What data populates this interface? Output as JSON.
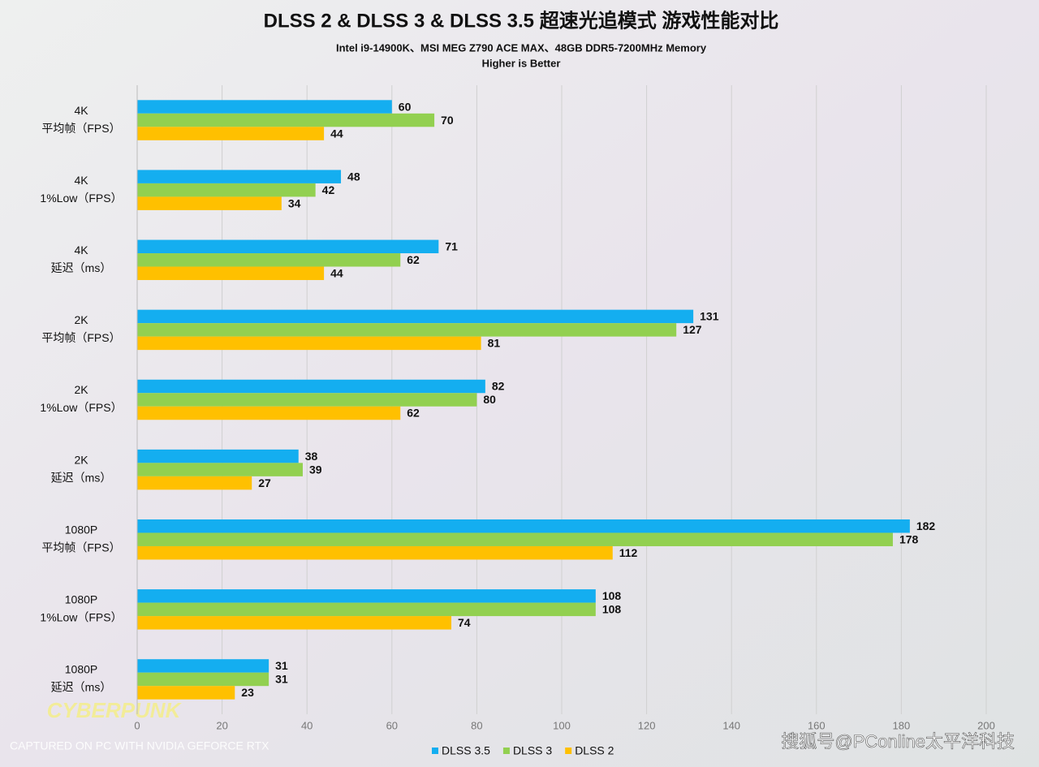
{
  "chart_data": {
    "type": "hbar",
    "title": "DLSS 2 & DLSS 3 & DLSS 3.5 超速光追模式 游戏性能对比",
    "subtitle": [
      "Intel i9-14900K、MSI MEG Z790 ACE MAX、48GB DDR5-7200MHz Memory",
      "Higher is Better"
    ],
    "categories": [
      [
        "4K",
        "平均帧（FPS）"
      ],
      [
        "4K",
        "1%Low（FPS）"
      ],
      [
        "4K",
        "延迟（ms）"
      ],
      [
        "2K",
        "平均帧（FPS）"
      ],
      [
        "2K",
        "1%Low（FPS）"
      ],
      [
        "2K",
        "延迟（ms）"
      ],
      [
        "1080P",
        "平均帧（FPS）"
      ],
      [
        "1080P",
        "1%Low（FPS）"
      ],
      [
        "1080P",
        "延迟（ms）"
      ]
    ],
    "series": [
      {
        "name": "DLSS 3.5",
        "color": "#14aef0",
        "values": [
          60,
          48,
          71,
          131,
          82,
          38,
          182,
          108,
          31
        ]
      },
      {
        "name": "DLSS 3",
        "color": "#92d050",
        "values": [
          70,
          42,
          62,
          127,
          80,
          39,
          178,
          108,
          31
        ]
      },
      {
        "name": "DLSS 2",
        "color": "#ffc000",
        "values": [
          44,
          34,
          44,
          81,
          62,
          27,
          112,
          74,
          23
        ]
      }
    ],
    "xlim": [
      0,
      200
    ],
    "xticks": [
      0,
      20,
      40,
      60,
      80,
      100,
      120,
      140,
      160,
      180,
      200
    ],
    "grid": true,
    "legend": "bottom",
    "watermarks": [
      "CYBERPUNK",
      "CAPTURED ON PC WITH NVIDIA GEFORCE RTX",
      "搜狐号@PConline太平洋科技"
    ]
  }
}
